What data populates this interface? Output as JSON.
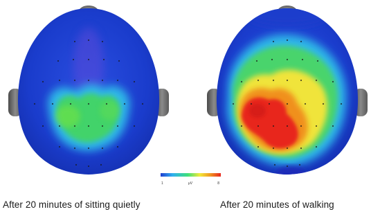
{
  "colorbar": {
    "min_label": "1",
    "unit_label": "μV",
    "max_label": "8",
    "stops": [
      "#1f3fd0",
      "#2fb0f0",
      "#3ee07a",
      "#f2ea3a",
      "#f09a22",
      "#e8261e"
    ]
  },
  "maps": [
    {
      "caption": "After 20 minutes of sitting quietly",
      "dominant_color": "#1a3ccc"
    },
    {
      "caption": "After 20 minutes of walking",
      "dominant_color": "#e8261e"
    }
  ]
}
